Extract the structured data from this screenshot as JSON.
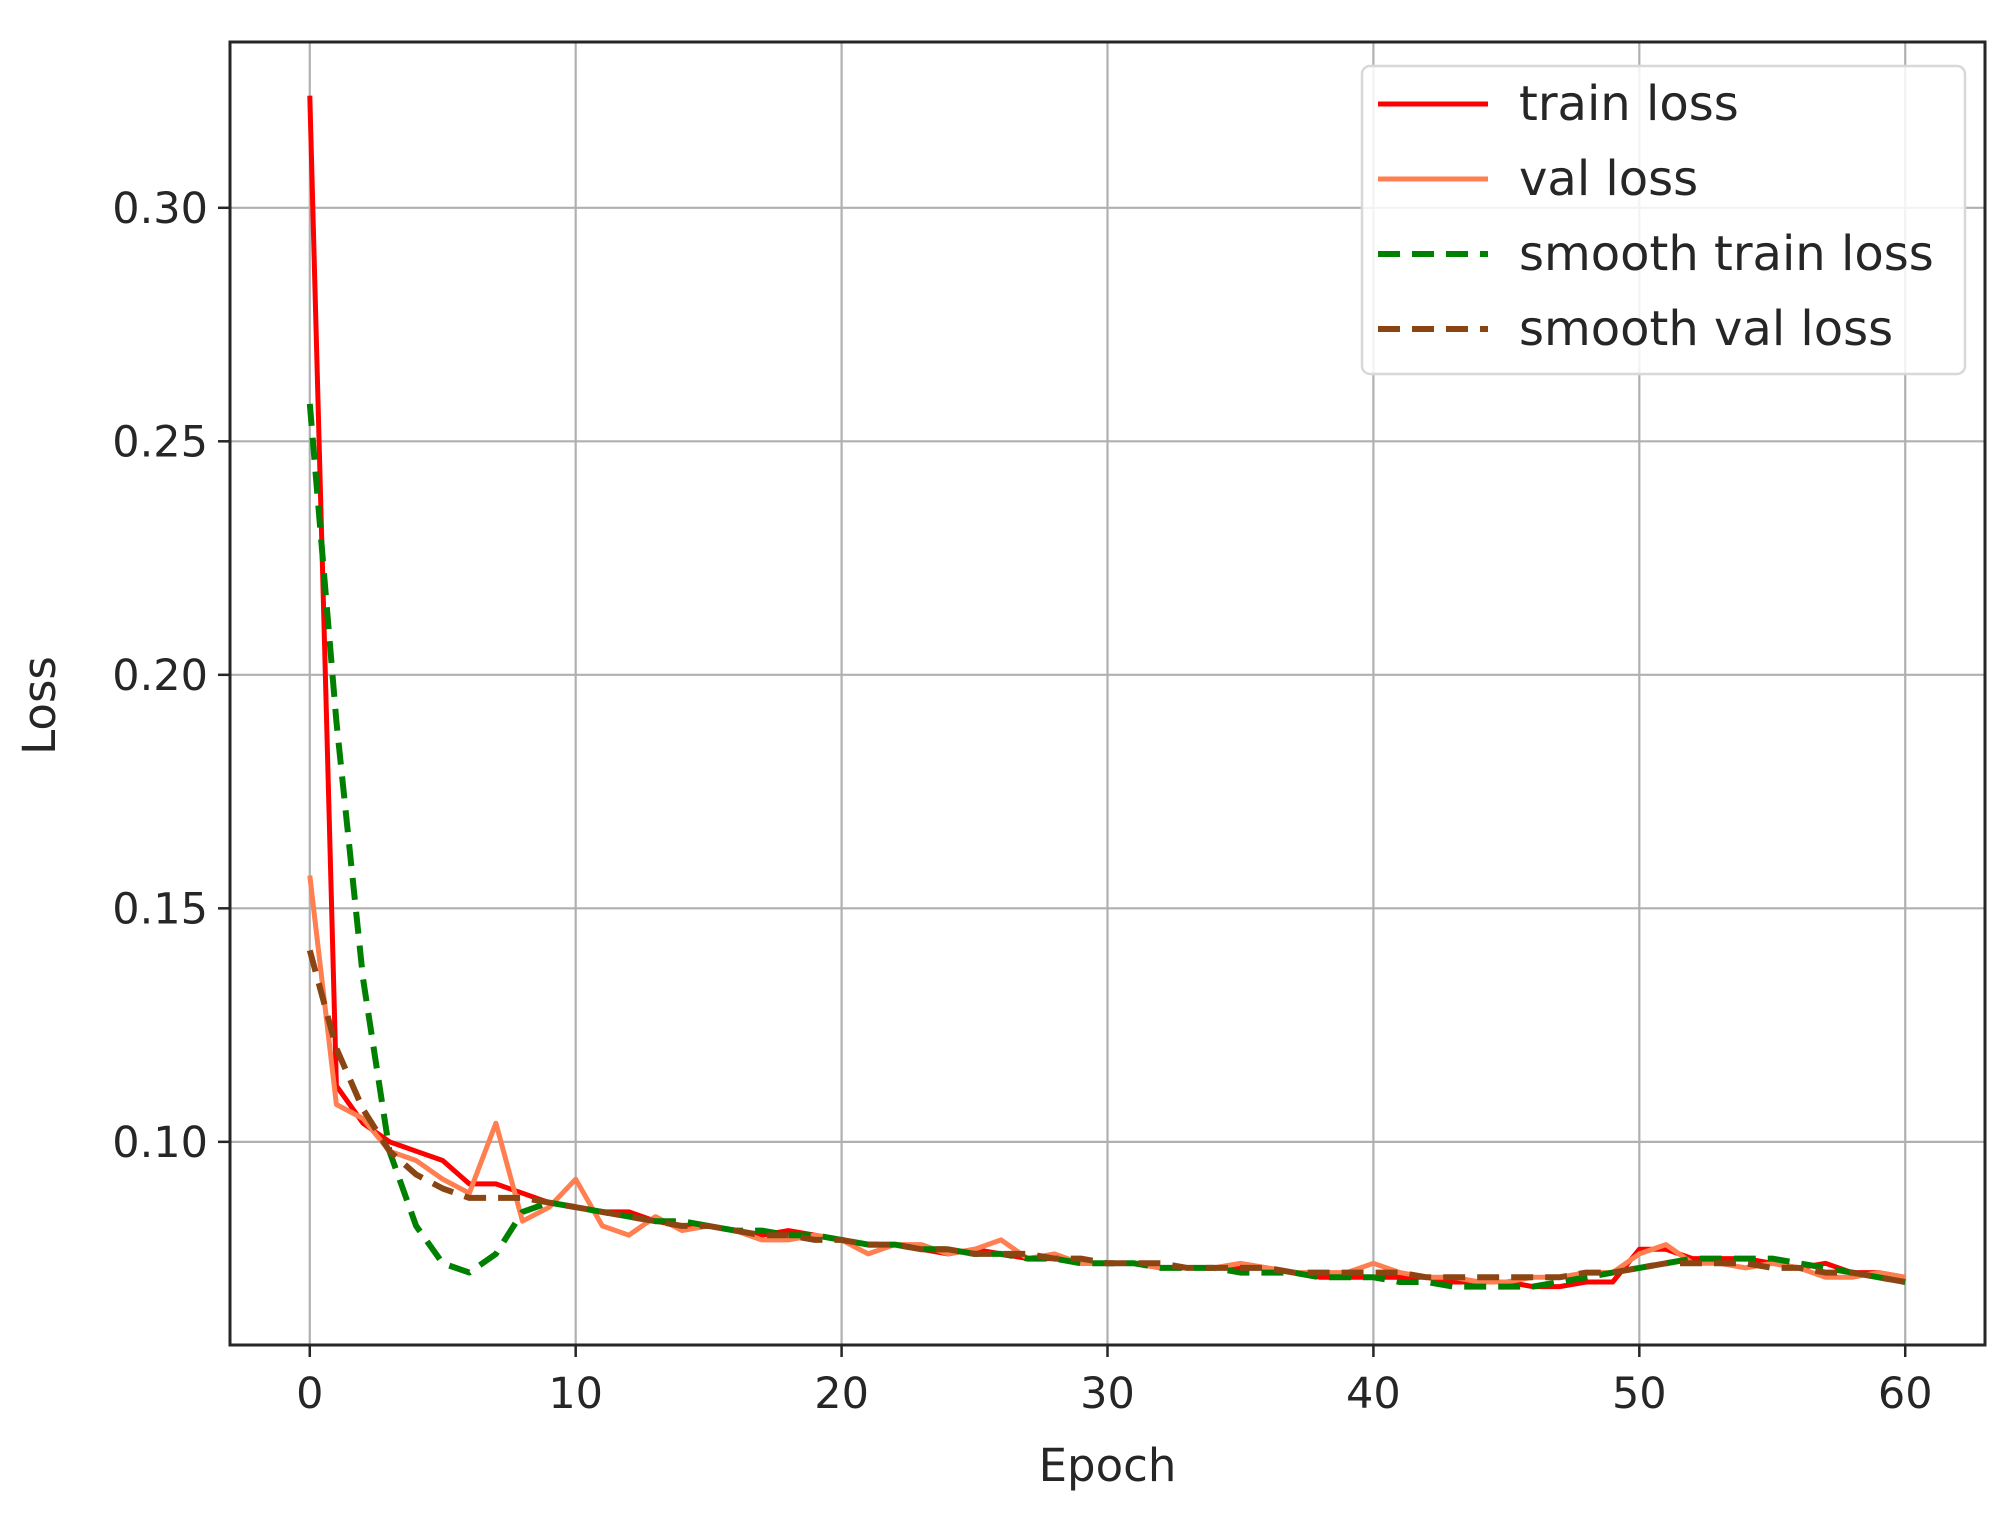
{
  "chart_data": {
    "type": "line",
    "title": "",
    "xlabel": "Epoch",
    "ylabel": "Loss",
    "xlim": [
      -3,
      63
    ],
    "ylim": [
      0.0565,
      0.3355
    ],
    "xticks": [
      0,
      10,
      20,
      30,
      40,
      50,
      60
    ],
    "yticks": [
      0.1,
      0.15,
      0.2,
      0.25,
      0.3
    ],
    "xtick_labels": [
      "0",
      "10",
      "20",
      "30",
      "40",
      "50",
      "60"
    ],
    "ytick_labels": [
      "0.10",
      "0.15",
      "0.20",
      "0.25",
      "0.30"
    ],
    "grid": true,
    "legend_position": "upper-right",
    "series": [
      {
        "name": "train loss",
        "color": "#ff0000",
        "style": "solid",
        "x": [
          0,
          1,
          2,
          3,
          4,
          5,
          6,
          7,
          8,
          9,
          10,
          11,
          12,
          13,
          14,
          15,
          16,
          17,
          18,
          19,
          20,
          21,
          22,
          23,
          24,
          25,
          26,
          27,
          28,
          29,
          30,
          31,
          32,
          33,
          34,
          35,
          36,
          37,
          38,
          39,
          40,
          41,
          42,
          43,
          44,
          45,
          46,
          47,
          48,
          49,
          50,
          51,
          52,
          53,
          54,
          55,
          56,
          57,
          58,
          59,
          60
        ],
        "values": [
          0.324,
          0.112,
          0.104,
          0.1,
          0.098,
          0.096,
          0.091,
          0.091,
          0.089,
          0.087,
          0.086,
          0.085,
          0.085,
          0.083,
          0.082,
          0.082,
          0.081,
          0.08,
          0.081,
          0.08,
          0.079,
          0.078,
          0.078,
          0.077,
          0.076,
          0.077,
          0.076,
          0.075,
          0.075,
          0.074,
          0.074,
          0.074,
          0.073,
          0.073,
          0.073,
          0.073,
          0.073,
          0.072,
          0.071,
          0.071,
          0.071,
          0.071,
          0.071,
          0.07,
          0.07,
          0.07,
          0.069,
          0.069,
          0.07,
          0.07,
          0.077,
          0.077,
          0.075,
          0.075,
          0.075,
          0.074,
          0.073,
          0.074,
          0.072,
          0.072,
          0.071
        ]
      },
      {
        "name": "val loss",
        "color": "#ff7f50",
        "style": "solid",
        "x": [
          0,
          1,
          2,
          3,
          4,
          5,
          6,
          7,
          8,
          9,
          10,
          11,
          12,
          13,
          14,
          15,
          16,
          17,
          18,
          19,
          20,
          21,
          22,
          23,
          24,
          25,
          26,
          27,
          28,
          29,
          30,
          31,
          32,
          33,
          34,
          35,
          36,
          37,
          38,
          39,
          40,
          41,
          42,
          43,
          44,
          45,
          46,
          47,
          48,
          49,
          50,
          51,
          52,
          53,
          54,
          55,
          56,
          57,
          58,
          59,
          60
        ],
        "values": [
          0.157,
          0.108,
          0.105,
          0.098,
          0.096,
          0.092,
          0.089,
          0.104,
          0.083,
          0.086,
          0.092,
          0.082,
          0.08,
          0.084,
          0.081,
          0.082,
          0.081,
          0.079,
          0.079,
          0.08,
          0.079,
          0.076,
          0.078,
          0.078,
          0.076,
          0.077,
          0.079,
          0.075,
          0.076,
          0.074,
          0.074,
          0.074,
          0.073,
          0.073,
          0.073,
          0.074,
          0.073,
          0.072,
          0.072,
          0.072,
          0.074,
          0.072,
          0.071,
          0.071,
          0.07,
          0.07,
          0.071,
          0.071,
          0.072,
          0.072,
          0.076,
          0.078,
          0.074,
          0.074,
          0.073,
          0.074,
          0.073,
          0.071,
          0.071,
          0.072,
          0.071
        ]
      },
      {
        "name": "smooth train loss",
        "color": "#008000",
        "style": "dashed",
        "x": [
          0,
          1,
          2,
          3,
          4,
          5,
          6,
          7,
          8,
          9,
          10,
          11,
          12,
          13,
          14,
          15,
          16,
          17,
          18,
          19,
          20,
          21,
          22,
          23,
          24,
          25,
          26,
          27,
          28,
          29,
          30,
          31,
          32,
          33,
          34,
          35,
          36,
          37,
          38,
          39,
          40,
          41,
          42,
          43,
          44,
          45,
          46,
          47,
          48,
          49,
          50,
          51,
          52,
          53,
          54,
          55,
          56,
          57,
          58,
          59,
          60
        ],
        "values": [
          0.258,
          0.19,
          0.135,
          0.098,
          0.082,
          0.074,
          0.072,
          0.076,
          0.085,
          0.087,
          0.086,
          0.085,
          0.084,
          0.083,
          0.083,
          0.082,
          0.081,
          0.081,
          0.08,
          0.08,
          0.079,
          0.078,
          0.078,
          0.077,
          0.077,
          0.076,
          0.076,
          0.075,
          0.075,
          0.074,
          0.074,
          0.074,
          0.073,
          0.073,
          0.073,
          0.072,
          0.072,
          0.072,
          0.071,
          0.071,
          0.071,
          0.07,
          0.07,
          0.069,
          0.069,
          0.069,
          0.069,
          0.07,
          0.071,
          0.072,
          0.073,
          0.074,
          0.075,
          0.075,
          0.075,
          0.075,
          0.074,
          0.073,
          0.072,
          0.071,
          0.07
        ]
      },
      {
        "name": "smooth val loss",
        "color": "#8b4513",
        "style": "dashed",
        "x": [
          0,
          1,
          2,
          3,
          4,
          5,
          6,
          7,
          8,
          9,
          10,
          11,
          12,
          13,
          14,
          15,
          16,
          17,
          18,
          19,
          20,
          21,
          22,
          23,
          24,
          25,
          26,
          27,
          28,
          29,
          30,
          31,
          32,
          33,
          34,
          35,
          36,
          37,
          38,
          39,
          40,
          41,
          42,
          43,
          44,
          45,
          46,
          47,
          48,
          49,
          50,
          51,
          52,
          53,
          54,
          55,
          56,
          57,
          58,
          59,
          60
        ],
        "values": [
          0.141,
          0.12,
          0.107,
          0.098,
          0.093,
          0.09,
          0.088,
          0.088,
          0.088,
          0.087,
          0.086,
          0.085,
          0.084,
          0.083,
          0.082,
          0.082,
          0.081,
          0.08,
          0.08,
          0.079,
          0.079,
          0.078,
          0.078,
          0.077,
          0.077,
          0.076,
          0.076,
          0.076,
          0.075,
          0.075,
          0.074,
          0.074,
          0.074,
          0.073,
          0.073,
          0.073,
          0.073,
          0.072,
          0.072,
          0.072,
          0.072,
          0.072,
          0.071,
          0.071,
          0.071,
          0.071,
          0.071,
          0.071,
          0.072,
          0.072,
          0.073,
          0.074,
          0.074,
          0.074,
          0.074,
          0.073,
          0.073,
          0.072,
          0.072,
          0.071,
          0.07
        ]
      }
    ]
  }
}
